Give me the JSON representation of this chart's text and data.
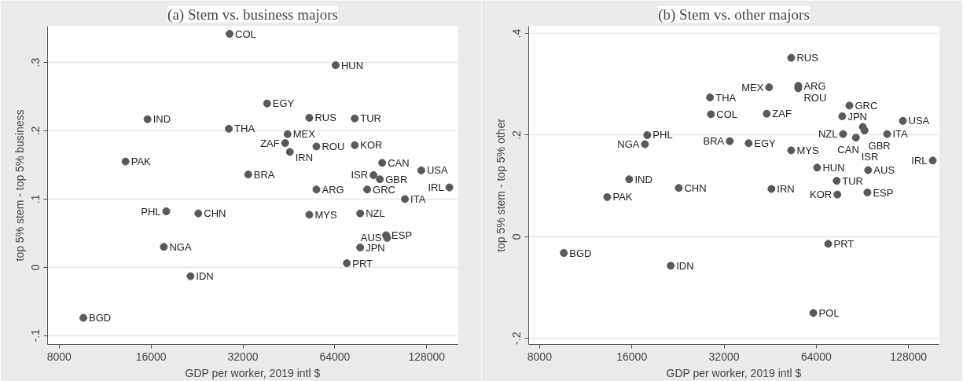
{
  "chart_data": [
    {
      "type": "scatter",
      "title": "(a) Stem vs. business majors",
      "xlabel": "GDP per worker, 2019 intl $",
      "ylabel": "top 5% stem - top 5% business",
      "log": "x",
      "grid": "y",
      "marker": "circle",
      "color": "#595959",
      "xlim": [
        7330,
        162000
      ],
      "ylim": [
        -0.113,
        0.353
      ],
      "xticks": [
        8000,
        16000,
        32000,
        64000,
        128000
      ],
      "yticks": [
        {
          "value": -0.1,
          "label": "-.1"
        },
        0,
        {
          "value": 0.1,
          "label": ".1"
        },
        {
          "value": 0.2,
          "label": ".2"
        },
        {
          "value": 0.3,
          "label": ".3"
        }
      ],
      "x": [
        28940,
        64400,
        38400,
        15580,
        28770,
        52800,
        74400,
        44800,
        44000,
        45600,
        55700,
        74400,
        13200,
        91500,
        122900,
        33300,
        85700,
        89900,
        151900,
        55700,
        81700,
        108600,
        17950,
        22860,
        52800,
        77500,
        94200,
        95000,
        77500,
        17620,
        70100,
        21550,
        9604
      ],
      "values": [
        0.342,
        0.296,
        0.24,
        0.217,
        0.203,
        0.219,
        0.218,
        0.195,
        0.182,
        0.169,
        0.177,
        0.179,
        0.155,
        0.153,
        0.142,
        0.136,
        0.135,
        0.129,
        0.117,
        0.114,
        0.114,
        0.1,
        0.082,
        0.079,
        0.077,
        0.079,
        0.047,
        0.043,
        0.029,
        0.03,
        0.006,
        -0.013,
        -0.074
      ],
      "annotations": [
        {
          "text": "COL",
          "x": 28940,
          "y": 0.342
        },
        {
          "text": "HUN",
          "x": 64400,
          "y": 0.296
        },
        {
          "text": "EGY",
          "x": 38400,
          "y": 0.24
        },
        {
          "text": "IND",
          "x": 15580,
          "y": 0.217
        },
        {
          "text": "THA",
          "x": 28770,
          "y": 0.203
        },
        {
          "text": "RUS",
          "x": 52800,
          "y": 0.219
        },
        {
          "text": "TUR",
          "x": 74400,
          "y": 0.218
        },
        {
          "text": "MEX",
          "x": 44800,
          "y": 0.195
        },
        {
          "text": "ZAF",
          "x": 44000,
          "y": 0.182
        },
        {
          "text": "IRN",
          "x": 45600,
          "y": 0.169
        },
        {
          "text": "ROU",
          "x": 55700,
          "y": 0.177
        },
        {
          "text": "KOR",
          "x": 74400,
          "y": 0.179
        },
        {
          "text": "PAK",
          "x": 13200,
          "y": 0.155
        },
        {
          "text": "CAN",
          "x": 91500,
          "y": 0.153
        },
        {
          "text": "USA",
          "x": 122900,
          "y": 0.142
        },
        {
          "text": "BRA",
          "x": 33300,
          "y": 0.136
        },
        {
          "text": "ISR",
          "x": 85700,
          "y": 0.135
        },
        {
          "text": "GBR",
          "x": 89900,
          "y": 0.129
        },
        {
          "text": "IRL",
          "x": 151900,
          "y": 0.117
        },
        {
          "text": "ARG",
          "x": 55700,
          "y": 0.114
        },
        {
          "text": "GRC",
          "x": 81700,
          "y": 0.114
        },
        {
          "text": "ITA",
          "x": 108600,
          "y": 0.1
        },
        {
          "text": "PHL",
          "x": 17950,
          "y": 0.082
        },
        {
          "text": "CHN",
          "x": 22860,
          "y": 0.079
        },
        {
          "text": "MYS",
          "x": 52800,
          "y": 0.077
        },
        {
          "text": "NZL",
          "x": 77500,
          "y": 0.079
        },
        {
          "text": "ESP",
          "x": 94200,
          "y": 0.047
        },
        {
          "text": "AUS",
          "x": 95000,
          "y": 0.043
        },
        {
          "text": "JPN",
          "x": 77500,
          "y": 0.029
        },
        {
          "text": "NGA",
          "x": 17620,
          "y": 0.03
        },
        {
          "text": "PRT",
          "x": 70100,
          "y": 0.006
        },
        {
          "text": "IDN",
          "x": 21550,
          "y": -0.013
        },
        {
          "text": "BGD",
          "x": 9604,
          "y": -0.074
        }
      ]
    },
    {
      "type": "scatter",
      "title": "(b) Stem vs. other majors",
      "xlabel": "GDP per worker, 2019 intl $",
      "ylabel": "top 5% stem - top 5% other",
      "log": "x",
      "grid": "y",
      "marker": "circle",
      "color": "#595959",
      "xlim": [
        7370,
        161000
      ],
      "ylim": [
        -0.212,
        0.414
      ],
      "xticks": [
        8000,
        16000,
        32000,
        64000,
        128000
      ],
      "yticks": [
        {
          "value": -0.2,
          "label": "-.2"
        },
        0,
        {
          "value": 0.2,
          "label": ".2"
        },
        {
          "value": 0.4,
          "label": ".4"
        }
      ],
      "x": [
        53000,
        55900,
        55900,
        44900,
        28800,
        29000,
        44100,
        82100,
        77800,
        122700,
        90800,
        92000,
        109000,
        78300,
        86200,
        17970,
        17660,
        33400,
        38500,
        53000,
        153600,
        64400,
        94500,
        15690,
        74600,
        22770,
        45700,
        75000,
        94000,
        13300,
        70000,
        9600,
        21440,
        62600
      ],
      "values": [
        0.352,
        0.297,
        0.292,
        0.294,
        0.274,
        0.241,
        0.242,
        0.258,
        0.237,
        0.228,
        0.216,
        0.209,
        0.202,
        0.202,
        0.195,
        0.2,
        0.182,
        0.188,
        0.184,
        0.17,
        0.15,
        0.136,
        0.131,
        0.113,
        0.11,
        0.096,
        0.094,
        0.083,
        0.087,
        0.078,
        -0.014,
        -0.032,
        -0.057,
        -0.15
      ],
      "annotations": [
        {
          "text": "RUS",
          "x": 53000,
          "y": 0.352
        },
        {
          "text": "ARG",
          "x": 55900,
          "y": 0.297
        },
        {
          "text": "ROU",
          "x": 55900,
          "y": 0.292
        },
        {
          "text": "MEX",
          "x": 44900,
          "y": 0.294
        },
        {
          "text": "THA",
          "x": 28800,
          "y": 0.274
        },
        {
          "text": "COL",
          "x": 29000,
          "y": 0.241
        },
        {
          "text": "ZAF",
          "x": 44100,
          "y": 0.242
        },
        {
          "text": "GRC",
          "x": 82100,
          "y": 0.258
        },
        {
          "text": "JPN",
          "x": 77800,
          "y": 0.237
        },
        {
          "text": "USA",
          "x": 122700,
          "y": 0.228
        },
        {
          "text": "GBR",
          "x": 90800,
          "y": 0.216
        },
        {
          "text": "CAN",
          "x": 92000,
          "y": 0.209
        },
        {
          "text": "ITA",
          "x": 109000,
          "y": 0.202
        },
        {
          "text": "NZL",
          "x": 78300,
          "y": 0.202
        },
        {
          "text": "ISR",
          "x": 86200,
          "y": 0.195
        },
        {
          "text": "PHL",
          "x": 17970,
          "y": 0.2
        },
        {
          "text": "NGA",
          "x": 17660,
          "y": 0.182
        },
        {
          "text": "BRA",
          "x": 33400,
          "y": 0.188
        },
        {
          "text": "EGY",
          "x": 38500,
          "y": 0.184
        },
        {
          "text": "MYS",
          "x": 53000,
          "y": 0.17
        },
        {
          "text": "IRL",
          "x": 153600,
          "y": 0.15
        },
        {
          "text": "HUN",
          "x": 64400,
          "y": 0.136
        },
        {
          "text": "AUS",
          "x": 94500,
          "y": 0.131
        },
        {
          "text": "IND",
          "x": 15690,
          "y": 0.113
        },
        {
          "text": "TUR",
          "x": 74600,
          "y": 0.11
        },
        {
          "text": "CHN",
          "x": 22770,
          "y": 0.096
        },
        {
          "text": "IRN",
          "x": 45700,
          "y": 0.094
        },
        {
          "text": "KOR",
          "x": 75000,
          "y": 0.083
        },
        {
          "text": "ESP",
          "x": 94000,
          "y": 0.087
        },
        {
          "text": "PAK",
          "x": 13300,
          "y": 0.078
        },
        {
          "text": "PRT",
          "x": 70000,
          "y": -0.014
        },
        {
          "text": "BGD",
          "x": 9600,
          "y": -0.032
        },
        {
          "text": "IDN",
          "x": 21440,
          "y": -0.057
        },
        {
          "text": "POL",
          "x": 62600,
          "y": -0.15
        }
      ]
    }
  ]
}
